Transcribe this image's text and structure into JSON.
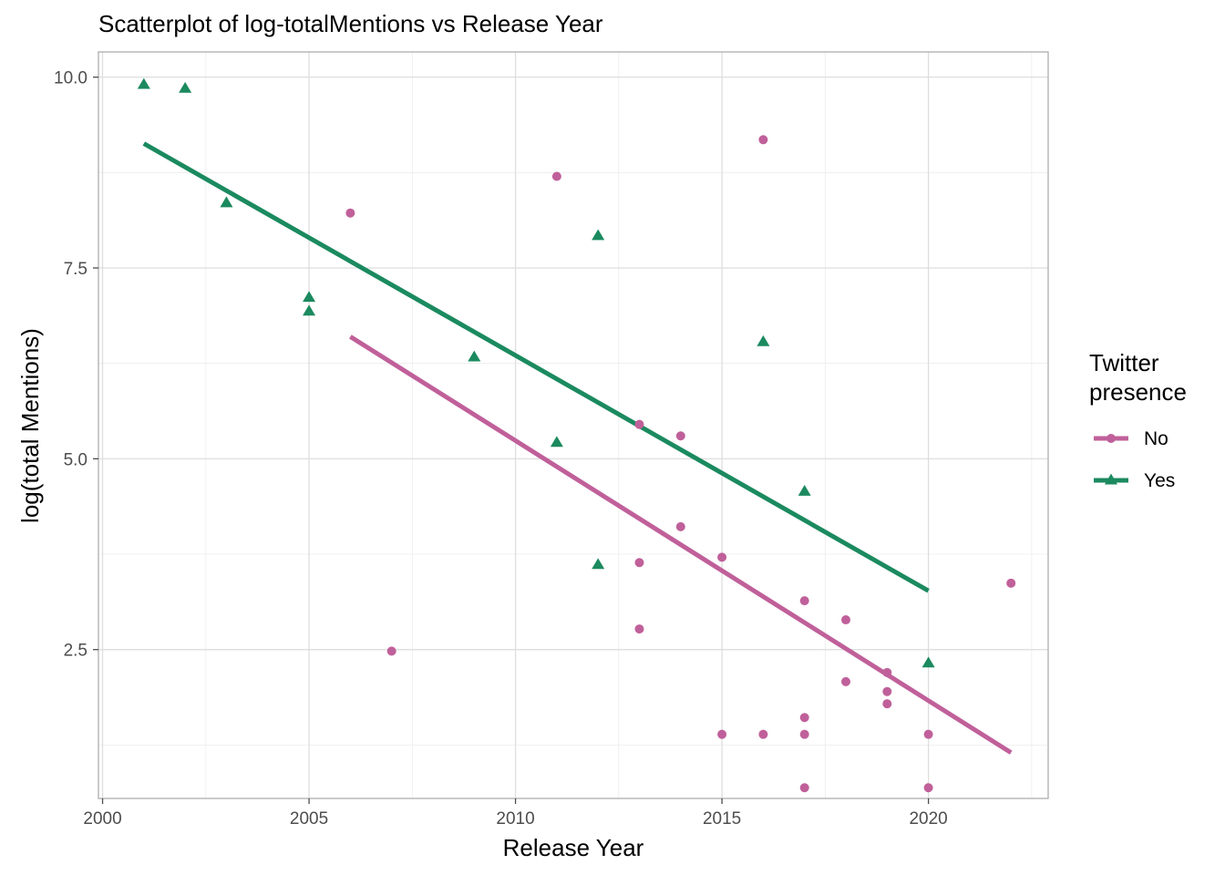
{
  "chart_data": {
    "type": "scatter",
    "title": "Scatterplot of log-totalMentions vs Release Year",
    "xlabel": "Release Year",
    "ylabel": "log(total Mentions)",
    "xlim": [
      1999.9,
      2022.9
    ],
    "ylim": [
      0.55,
      10.33
    ],
    "x_ticks": [
      2000,
      2005,
      2010,
      2015,
      2020
    ],
    "y_ticks": [
      2.5,
      5.0,
      7.5,
      10.0
    ],
    "y_tick_labels": [
      "2.5",
      "5.0",
      "7.5",
      "10.0"
    ],
    "grid": true,
    "legend": {
      "title": [
        "Twitter",
        "presence"
      ],
      "position": "right"
    },
    "series": [
      {
        "name": "No",
        "color": "#c0609a",
        "marker": "circle",
        "points": [
          [
            2006,
            8.22
          ],
          [
            2007,
            2.48
          ],
          [
            2011,
            8.7
          ],
          [
            2013,
            5.45
          ],
          [
            2013,
            3.64
          ],
          [
            2013,
            2.77
          ],
          [
            2014,
            5.3
          ],
          [
            2014,
            4.11
          ],
          [
            2015,
            3.71
          ],
          [
            2015,
            1.39
          ],
          [
            2016,
            9.18
          ],
          [
            2016,
            1.39
          ],
          [
            2017,
            3.14
          ],
          [
            2017,
            1.61
          ],
          [
            2017,
            1.39
          ],
          [
            2017,
            0.69
          ],
          [
            2018,
            2.89
          ],
          [
            2018,
            2.08
          ],
          [
            2019,
            2.2
          ],
          [
            2019,
            1.95
          ],
          [
            2019,
            1.79
          ],
          [
            2020,
            1.39
          ],
          [
            2020,
            0.69
          ],
          [
            2022,
            3.37
          ]
        ],
        "trend": [
          [
            2006,
            6.6
          ],
          [
            2022,
            1.15
          ]
        ]
      },
      {
        "name": "Yes",
        "color": "#1b8a5f",
        "marker": "triangle",
        "points": [
          [
            2001,
            9.9
          ],
          [
            2002,
            9.85
          ],
          [
            2003,
            8.35
          ],
          [
            2005,
            7.11
          ],
          [
            2005,
            6.93
          ],
          [
            2009,
            6.33
          ],
          [
            2011,
            5.21
          ],
          [
            2012,
            7.92
          ],
          [
            2012,
            3.61
          ],
          [
            2016,
            6.53
          ],
          [
            2017,
            4.57
          ],
          [
            2020,
            2.32
          ]
        ],
        "trend": [
          [
            2001,
            9.13
          ],
          [
            2020,
            3.27
          ]
        ]
      }
    ]
  }
}
